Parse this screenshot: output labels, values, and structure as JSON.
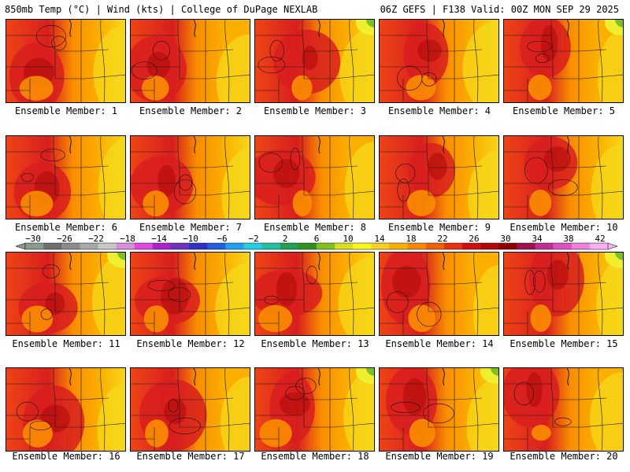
{
  "header": {
    "left_title": "850mb Temp (°C) | Wind (kts) | College of DuPage NEXLAB",
    "right_title": "06Z GEFS | F138 Valid: 00Z MON SEP 29 2025"
  },
  "label_prefix": "Ensemble Member:",
  "members": [
    {
      "number": "1",
      "label": "Ensemble Member: 1"
    },
    {
      "number": "2",
      "label": "Ensemble Member: 2"
    },
    {
      "number": "3",
      "label": "Ensemble Member: 3"
    },
    {
      "number": "4",
      "label": "Ensemble Member: 4"
    },
    {
      "number": "5",
      "label": "Ensemble Member: 5"
    },
    {
      "number": "6",
      "label": "Ensemble Member: 6"
    },
    {
      "number": "7",
      "label": "Ensemble Member: 7"
    },
    {
      "number": "8",
      "label": "Ensemble Member: 8"
    },
    {
      "number": "9",
      "label": "Ensemble Member: 9"
    },
    {
      "number": "10",
      "label": "Ensemble Member: 10"
    },
    {
      "number": "11",
      "label": "Ensemble Member: 11"
    },
    {
      "number": "12",
      "label": "Ensemble Member: 12"
    },
    {
      "number": "13",
      "label": "Ensemble Member: 13"
    },
    {
      "number": "14",
      "label": "Ensemble Member: 14"
    },
    {
      "number": "15",
      "label": "Ensemble Member: 15"
    },
    {
      "number": "16",
      "label": "Ensemble Member: 16"
    },
    {
      "number": "17",
      "label": "Ensemble Member: 17"
    },
    {
      "number": "18",
      "label": "Ensemble Member: 18"
    },
    {
      "number": "19",
      "label": "Ensemble Member: 19"
    },
    {
      "number": "20",
      "label": "Ensemble Member: 20"
    }
  ],
  "colorbar": {
    "ticks": [
      "-30",
      "-26",
      "-22",
      "-18",
      "-14",
      "-10",
      "-6",
      "-2",
      "2",
      "6",
      "10",
      "14",
      "18",
      "22",
      "26",
      "30",
      "34",
      "38",
      "42"
    ],
    "colors": [
      "#8a9a8a",
      "#6e6e6e",
      "#8c8c8c",
      "#a8a8a8",
      "#c8c8c8",
      "#d890d8",
      "#e048e0",
      "#b020d0",
      "#7030c0",
      "#3030c8",
      "#2060e0",
      "#20a0f0",
      "#20d0e0",
      "#20c0a0",
      "#20a050",
      "#309020",
      "#80c020",
      "#d8e020",
      "#f8f820",
      "#f8d020",
      "#f8b000",
      "#f88800",
      "#f06000",
      "#e83010",
      "#d01010",
      "#b00808",
      "#900000",
      "#a01050",
      "#c03090",
      "#e050c0",
      "#f080e0",
      "#f8b0f0"
    ]
  },
  "map_palette": {
    "hot": "#d81e1e",
    "warm": "#ee4416",
    "orange": "#f98d00",
    "amber": "#fbb000",
    "yellow": "#f6d81a",
    "lemon": "#eef030",
    "green": "#7cc024",
    "dark_red": "#ad0a0a",
    "contour": "#3a1010",
    "boundary": "#1a1a1a"
  }
}
